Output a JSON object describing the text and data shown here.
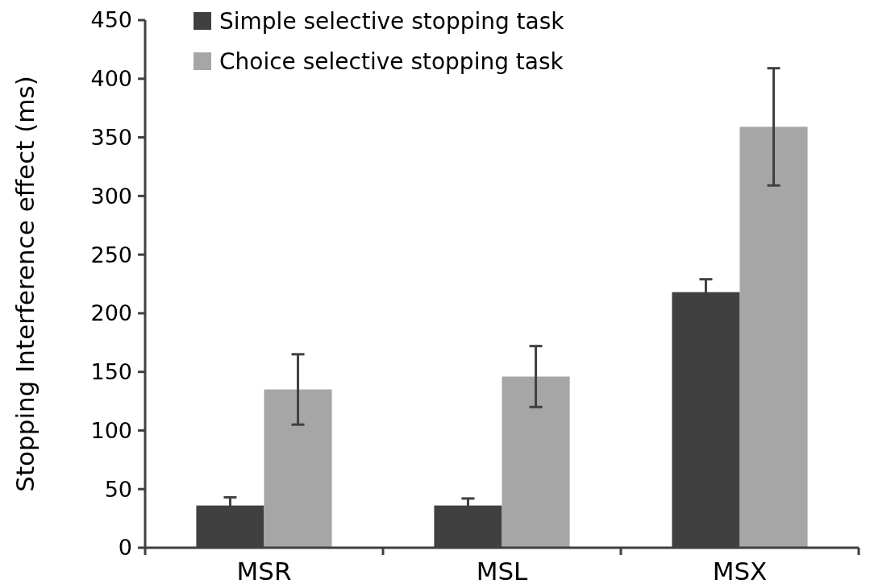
{
  "chart_data": {
    "type": "bar",
    "ylabel": "Stopping Interference effect (ms)",
    "categories": [
      "MSR",
      "MSL",
      "MSX"
    ],
    "series": [
      {
        "name": "Simple selective stopping task",
        "color": "#404040",
        "values": [
          36,
          36,
          218
        ],
        "errors": [
          7,
          6,
          11
        ]
      },
      {
        "name": "Choice selective stopping task",
        "color": "#a6a6a6",
        "values": [
          135,
          146,
          359
        ],
        "errors": [
          30,
          26,
          50
        ]
      }
    ],
    "ylim": [
      0,
      450
    ],
    "yticks": [
      0,
      50,
      100,
      150,
      200,
      250,
      300,
      350,
      400,
      450
    ],
    "grid": false,
    "legend": "top left"
  }
}
